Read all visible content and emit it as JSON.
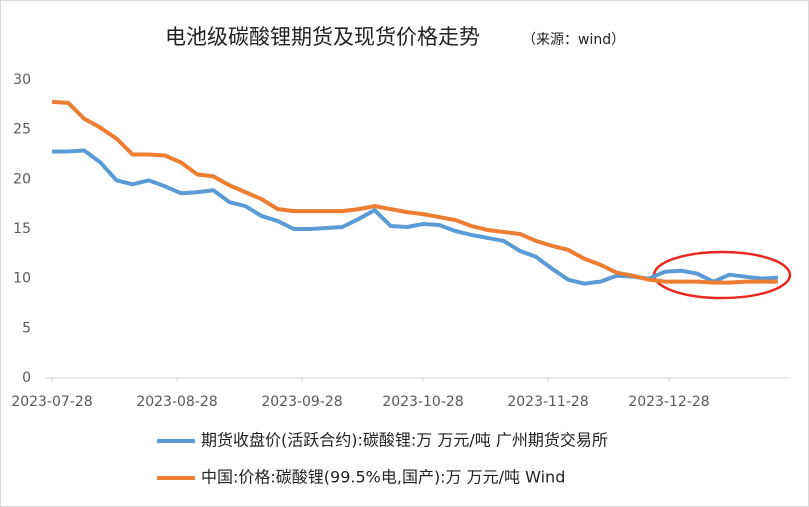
{
  "chart_data": {
    "type": "line",
    "title": "电池级碳酸锂期货及现货价格走势",
    "subtitle": "（来源：wind）",
    "x": [
      "2023-07-28",
      "2023-08-01",
      "2023-08-05",
      "2023-08-09",
      "2023-08-13",
      "2023-08-17",
      "2023-08-21",
      "2023-08-25",
      "2023-08-29",
      "2023-09-02",
      "2023-09-06",
      "2023-09-10",
      "2023-09-14",
      "2023-09-18",
      "2023-09-22",
      "2023-09-26",
      "2023-09-30",
      "2023-10-04",
      "2023-10-08",
      "2023-10-12",
      "2023-10-16",
      "2023-10-20",
      "2023-10-24",
      "2023-10-28",
      "2023-11-01",
      "2023-11-05",
      "2023-11-09",
      "2023-11-13",
      "2023-11-17",
      "2023-11-21",
      "2023-11-25",
      "2023-11-29",
      "2023-12-03",
      "2023-12-07",
      "2023-12-11",
      "2023-12-15",
      "2023-12-19",
      "2023-12-23",
      "2023-12-27",
      "2023-12-31",
      "2024-01-04",
      "2024-01-08",
      "2024-01-12",
      "2024-01-16",
      "2024-01-20",
      "2024-01-24"
    ],
    "series": [
      {
        "name": "期货收盘价(活跃合约):碳酸锂:万 万元/吨 广州期货交易所",
        "color": "#5b9bd5",
        "values": [
          22.8,
          22.8,
          22.9,
          21.7,
          19.9,
          19.5,
          19.9,
          19.3,
          18.6,
          18.7,
          18.9,
          17.7,
          17.3,
          16.3,
          15.8,
          15.0,
          15.0,
          15.1,
          15.2,
          16.0,
          16.9,
          15.3,
          15.2,
          15.5,
          15.4,
          14.8,
          14.4,
          14.1,
          13.8,
          12.8,
          12.2,
          11.0,
          9.9,
          9.5,
          9.7,
          10.3,
          10.2,
          10.0,
          10.7,
          10.8,
          10.5,
          9.7,
          10.4,
          10.2,
          10.0,
          10.1
        ]
      },
      {
        "name": "中国:价格:碳酸锂(99.5%电,国产):万 万元/吨 Wind",
        "color": "#ed7d31",
        "values": [
          27.8,
          27.7,
          26.1,
          25.2,
          24.1,
          22.5,
          22.5,
          22.4,
          21.7,
          20.5,
          20.3,
          19.4,
          18.7,
          18.0,
          17.0,
          16.8,
          16.8,
          16.8,
          16.8,
          17.0,
          17.3,
          17.0,
          16.7,
          16.5,
          16.2,
          15.9,
          15.3,
          14.9,
          14.7,
          14.5,
          13.8,
          13.3,
          12.9,
          12.0,
          11.4,
          10.6,
          10.3,
          9.9,
          9.7,
          9.7,
          9.7,
          9.6,
          9.6,
          9.7,
          9.7,
          9.7
        ]
      }
    ],
    "xlim": [
      "2023-07-28",
      "2024-01-27"
    ],
    "xticks": [
      "2023-07-28",
      "2023-08-28",
      "2023-09-28",
      "2023-10-28",
      "2023-11-28",
      "2023-12-28"
    ],
    "ylim": [
      0,
      30
    ],
    "yticks": [
      0,
      5,
      10,
      15,
      20,
      25,
      30
    ],
    "grid": false,
    "legend": "bottom"
  }
}
